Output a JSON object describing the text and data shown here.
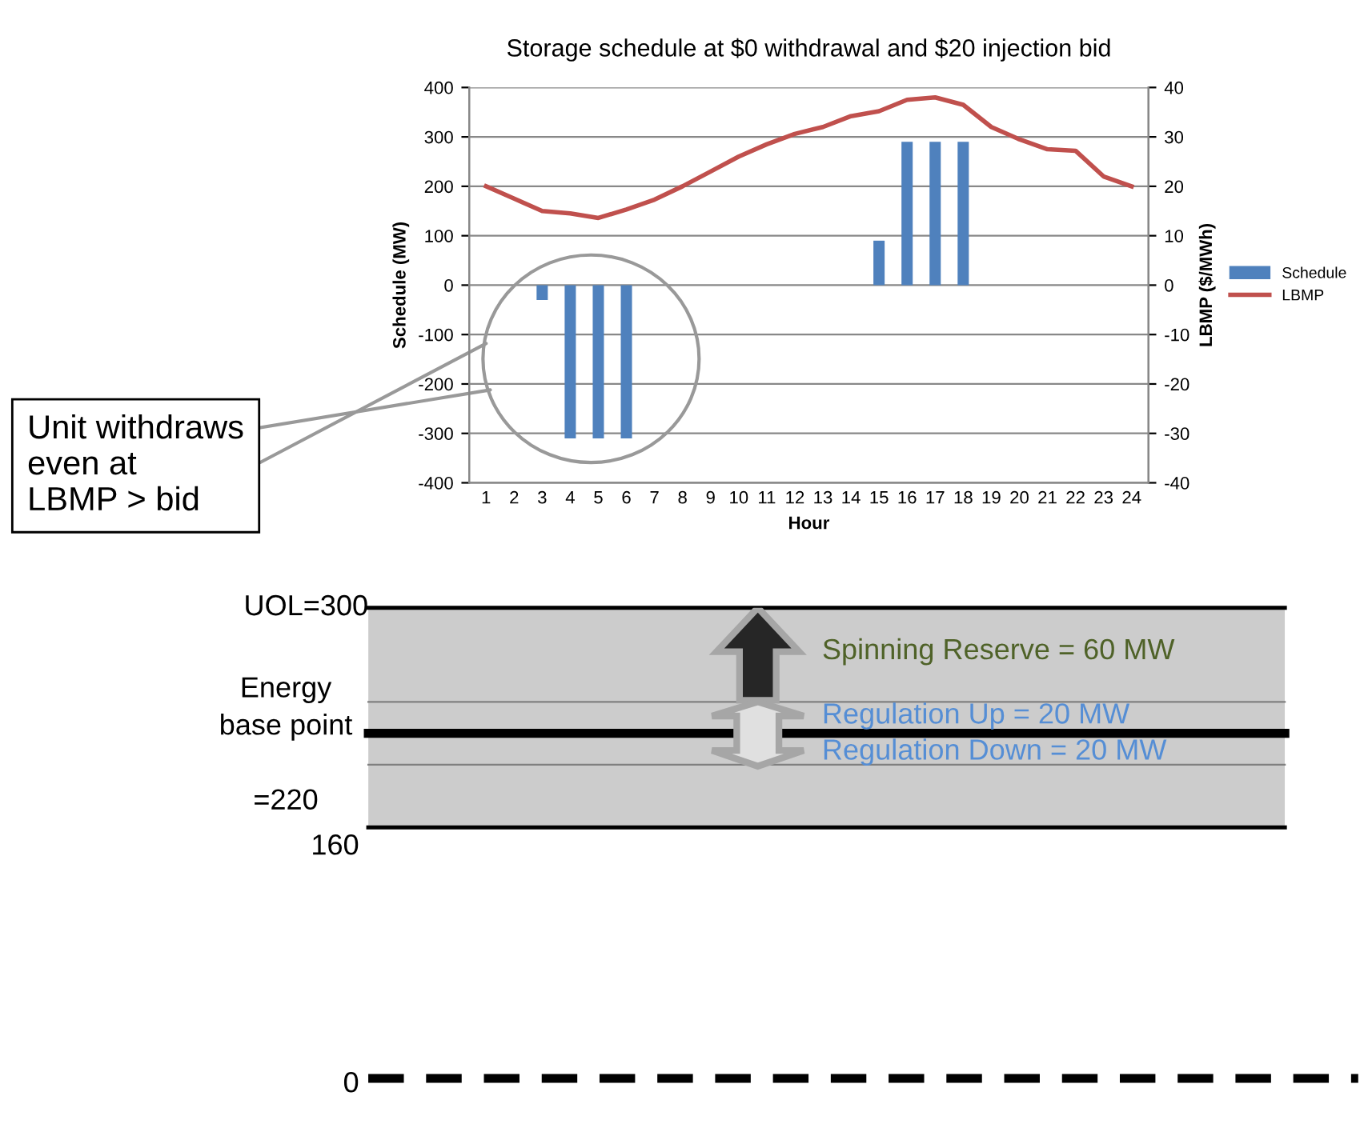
{
  "chart_data": [
    {
      "type": "bar",
      "title": "Storage schedule at $0 withdrawal and $20 injection bid",
      "xlabel": "Hour",
      "ylabel": "Schedule (MW)",
      "y2label": "LBMP ($/MWh)",
      "categories": [
        "1",
        "2",
        "3",
        "4",
        "5",
        "6",
        "7",
        "8",
        "9",
        "10",
        "11",
        "12",
        "13",
        "14",
        "15",
        "16",
        "17",
        "18",
        "19",
        "20",
        "21",
        "22",
        "23",
        "24"
      ],
      "series": [
        {
          "name": "Schedule",
          "type": "bar",
          "color": "#4f81bd",
          "values": [
            0,
            0,
            -30,
            -310,
            -310,
            -310,
            0,
            0,
            0,
            0,
            0,
            0,
            0,
            0,
            90,
            290,
            290,
            290,
            0,
            0,
            0,
            0,
            0,
            0
          ]
        },
        {
          "name": "LBMP",
          "type": "line",
          "axis": "y2",
          "color": "#c0504d",
          "values": [
            20,
            17.5,
            15,
            14.5,
            13.6,
            15.3,
            17.3,
            20,
            23,
            26,
            28.5,
            30.6,
            32,
            34.2,
            35.2,
            37.5,
            38,
            36.5,
            32,
            29.5,
            27.5,
            27.2,
            22,
            20
          ]
        }
      ],
      "ylim": [
        -400,
        400
      ],
      "yticks": [
        -400,
        -300,
        -200,
        -100,
        0,
        100,
        200,
        300,
        400
      ],
      "y2lim": [
        -40,
        40
      ],
      "y2ticks": [
        -40,
        -30,
        -20,
        -10,
        0,
        10,
        20,
        30,
        40
      ],
      "grid": "y",
      "legend": "right",
      "line_style": "solid",
      "marker": "none",
      "annotations": [
        "Unit withdraws\neven at\nLBMP > bid"
      ]
    },
    {
      "type": "other",
      "annotations": [
        "UOL=300",
        "Energy\nbase point\n\n=220",
        "160",
        "0",
        "Spinning Reserve = 60 MW",
        "Regulation Up = 20 MW",
        "Regulation Down = 20 MW"
      ]
    }
  ]
}
